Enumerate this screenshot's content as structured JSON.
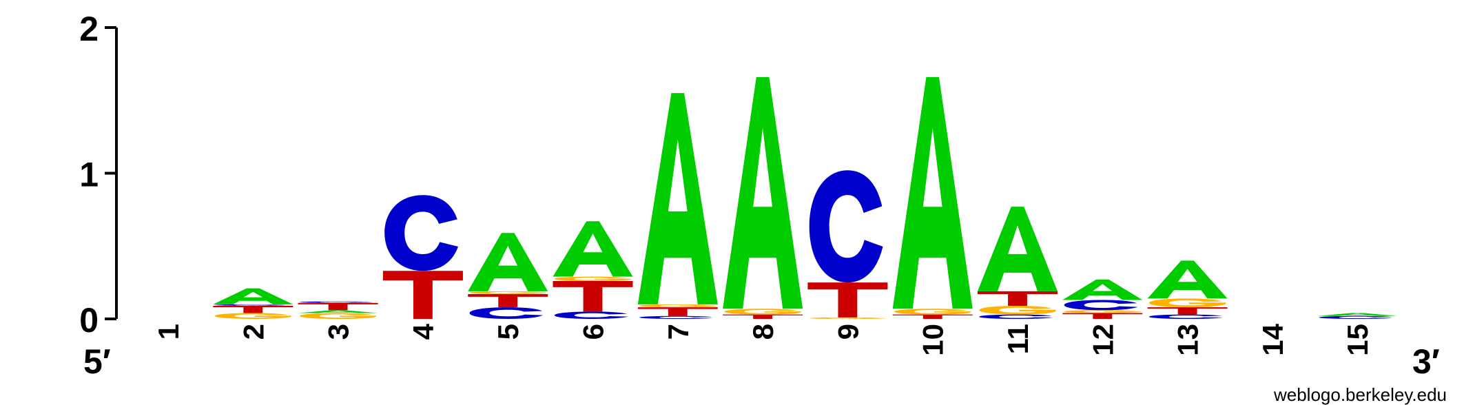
{
  "chart_data": {
    "type": "sequence-logo",
    "y_ticks": [
      "0",
      "1",
      "2"
    ],
    "ylim": [
      0,
      2
    ],
    "x_ticks": [
      "1",
      "2",
      "3",
      "4",
      "5",
      "6",
      "7",
      "8",
      "9",
      "10",
      "11",
      "12",
      "13",
      "14",
      "15"
    ],
    "end_labels": {
      "left": "5′",
      "right": "3′"
    },
    "credit": "weblogo.berkeley.edu",
    "colors": {
      "A": "#00cc00",
      "C": "#0000cc",
      "G": "#ffb300",
      "T": "#cc0000"
    },
    "positions": [
      {
        "pos": "1",
        "stack": []
      },
      {
        "pos": "2",
        "stack": [
          {
            "b": "G",
            "h": 0.04
          },
          {
            "b": "T",
            "h": 0.05
          },
          {
            "b": "C",
            "h": 0.01
          },
          {
            "b": "A",
            "h": 0.11
          }
        ]
      },
      {
        "pos": "3",
        "stack": [
          {
            "b": "G",
            "h": 0.04
          },
          {
            "b": "A",
            "h": 0.02
          },
          {
            "b": "T",
            "h": 0.05
          },
          {
            "b": "C",
            "h": 0.01
          }
        ]
      },
      {
        "pos": "4",
        "stack": [
          {
            "b": "T",
            "h": 0.33
          },
          {
            "b": "C",
            "h": 0.52
          }
        ]
      },
      {
        "pos": "5",
        "stack": [
          {
            "b": "C",
            "h": 0.08
          },
          {
            "b": "T",
            "h": 0.09
          },
          {
            "b": "G",
            "h": 0.02
          },
          {
            "b": "A",
            "h": 0.4
          }
        ]
      },
      {
        "pos": "6",
        "stack": [
          {
            "b": "C",
            "h": 0.05
          },
          {
            "b": "T",
            "h": 0.21
          },
          {
            "b": "G",
            "h": 0.03
          },
          {
            "b": "A",
            "h": 0.38
          }
        ]
      },
      {
        "pos": "7",
        "stack": [
          {
            "b": "C",
            "h": 0.02
          },
          {
            "b": "T",
            "h": 0.06
          },
          {
            "b": "G",
            "h": 0.02
          },
          {
            "b": "A",
            "h": 1.45
          }
        ]
      },
      {
        "pos": "8",
        "stack": [
          {
            "b": "T",
            "h": 0.03
          },
          {
            "b": "G",
            "h": 0.04
          },
          {
            "b": "A",
            "h": 1.59
          }
        ]
      },
      {
        "pos": "9",
        "stack": [
          {
            "b": "G",
            "h": 0.01
          },
          {
            "b": "T",
            "h": 0.24
          },
          {
            "b": "C",
            "h": 0.77
          }
        ]
      },
      {
        "pos": "10",
        "stack": [
          {
            "b": "T",
            "h": 0.03
          },
          {
            "b": "G",
            "h": 0.04
          },
          {
            "b": "A",
            "h": 1.59
          }
        ]
      },
      {
        "pos": "11",
        "stack": [
          {
            "b": "C",
            "h": 0.03
          },
          {
            "b": "G",
            "h": 0.06
          },
          {
            "b": "T",
            "h": 0.1
          },
          {
            "b": "A",
            "h": 0.58
          }
        ]
      },
      {
        "pos": "12",
        "stack": [
          {
            "b": "T",
            "h": 0.04
          },
          {
            "b": "G",
            "h": 0.02
          },
          {
            "b": "C",
            "h": 0.07
          },
          {
            "b": "A",
            "h": 0.14
          }
        ]
      },
      {
        "pos": "13",
        "stack": [
          {
            "b": "C",
            "h": 0.03
          },
          {
            "b": "T",
            "h": 0.05
          },
          {
            "b": "G",
            "h": 0.06
          },
          {
            "b": "A",
            "h": 0.26
          }
        ]
      },
      {
        "pos": "14",
        "stack": []
      },
      {
        "pos": "15",
        "stack": [
          {
            "b": "C",
            "h": 0.02
          },
          {
            "b": "A",
            "h": 0.02
          }
        ]
      }
    ]
  }
}
